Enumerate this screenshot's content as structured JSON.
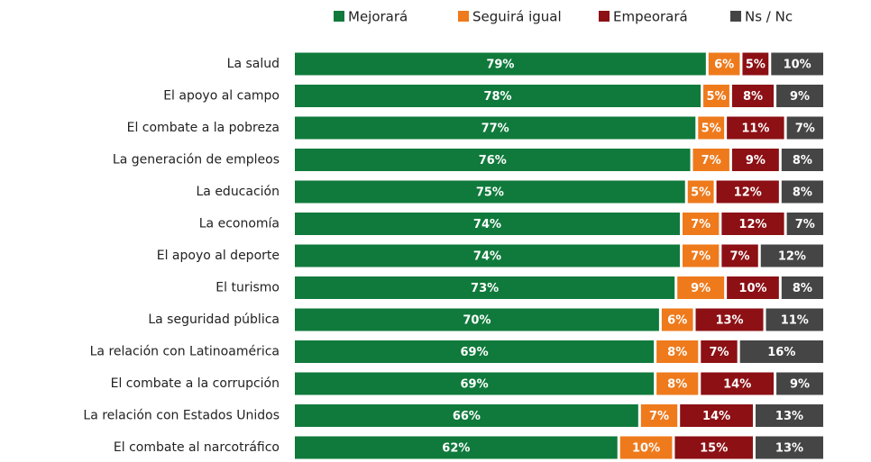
{
  "chart_data": {
    "type": "stacked_bar_horizontal",
    "categories": [
      "La salud",
      "El apoyo al campo",
      "El combate a la pobreza",
      "La generación de empleos",
      "La educación",
      "La economía",
      "El apoyo al deporte",
      "El turismo",
      "La seguridad pública",
      "La relación con Latinoamérica",
      "El combate a la corrupción",
      "La relación con Estados Unidos",
      "El combate al narcotráfico"
    ],
    "series": [
      {
        "name": "Mejorará",
        "color": "#0f7a3b",
        "values": [
          79,
          78,
          77,
          76,
          75,
          74,
          74,
          73,
          70,
          69,
          69,
          66,
          62
        ],
        "value_labels": [
          "79%",
          "78%",
          "77%",
          "76%",
          "75%",
          "74%",
          "74%",
          "73%",
          "70%",
          "69%",
          "69%",
          "66%",
          "62%"
        ]
      },
      {
        "name": "Seguirá igual",
        "color": "#ee7a1c",
        "values": [
          6,
          5,
          5,
          7,
          5,
          7,
          7,
          9,
          6,
          8,
          8,
          7,
          10
        ],
        "value_labels": [
          "6%",
          "5%",
          "5%",
          "7%",
          "5%",
          "7%",
          "7%",
          "9%",
          "6%",
          "8%",
          "8%",
          "7%",
          "10%"
        ]
      },
      {
        "name": "Empeorará",
        "color": "#8c1014",
        "values": [
          5,
          8,
          11,
          9,
          12,
          12,
          7,
          10,
          13,
          7,
          14,
          14,
          15
        ],
        "value_labels": [
          "5%",
          "8%",
          "11%",
          "9%",
          "12%",
          "12%",
          "7%",
          "10%",
          "13%",
          "7%",
          "14%",
          "14%",
          "15%"
        ]
      },
      {
        "name": "Ns / Nc",
        "color": "#454545",
        "values": [
          10,
          9,
          7,
          8,
          8,
          7,
          12,
          8,
          11,
          16,
          9,
          13,
          13
        ],
        "value_labels": [
          "10%",
          "9%",
          "7%",
          "8%",
          "8%",
          "7%",
          "12%",
          "8%",
          "11%",
          "16%",
          "9%",
          "13%",
          "13%"
        ]
      }
    ],
    "legend": "top"
  }
}
